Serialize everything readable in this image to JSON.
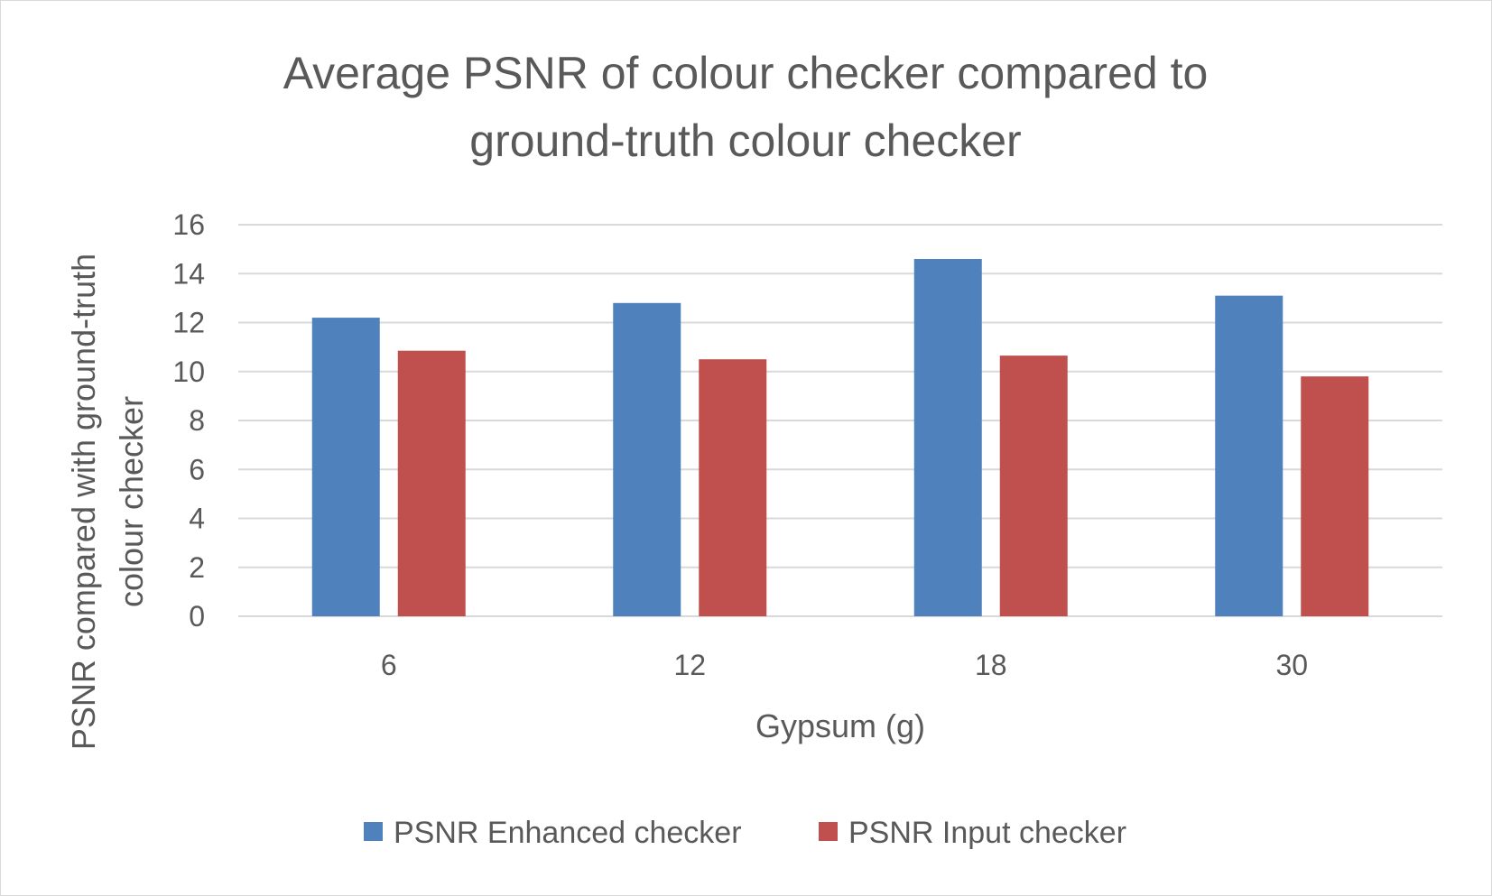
{
  "chart_data": {
    "type": "bar",
    "title_lines": [
      "Average PSNR of colour checker compared to",
      "ground-truth colour checker"
    ],
    "xlabel": "Gypsum (g)",
    "ylabel_lines": [
      "PSNR compared with ground-truth",
      "colour checker"
    ],
    "categories": [
      "6",
      "12",
      "18",
      "30"
    ],
    "series": [
      {
        "name": "PSNR Enhanced checker",
        "color": "#4f81bd",
        "values": [
          12.2,
          12.8,
          14.6,
          13.1
        ]
      },
      {
        "name": "PSNR Input checker",
        "color": "#c0504d",
        "values": [
          10.85,
          10.5,
          10.65,
          9.8
        ]
      }
    ],
    "ylim": [
      0,
      16
    ],
    "yticks": [
      "0",
      "2",
      "4",
      "6",
      "8",
      "10",
      "12",
      "14",
      "16"
    ],
    "grid": true,
    "legend_position": "bottom"
  }
}
